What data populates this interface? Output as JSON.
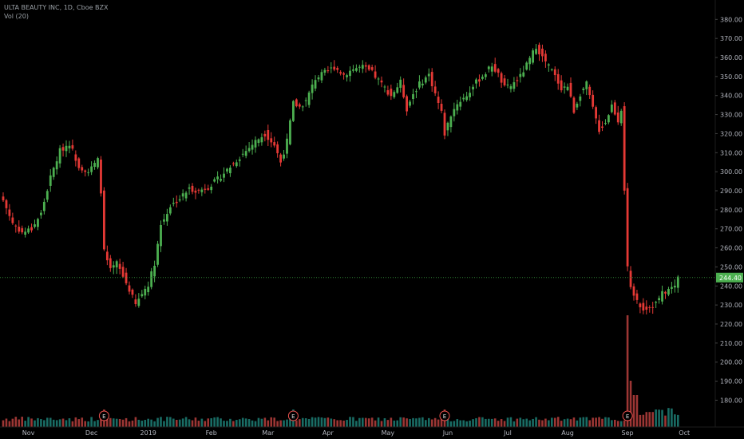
{
  "legend": {
    "symbol_line": "ULTA BEAUTY INC, 1D, Cboe BZX",
    "volume_line": "Vol (20)"
  },
  "colors": {
    "up": "#26a69a",
    "up_body": "#4caf50",
    "down": "#ef5350",
    "down_body": "#e53935",
    "background": "#000000",
    "axis_text": "#b2b5be",
    "price_line": "#2e7d32",
    "price_label_bg": "#4caf50"
  },
  "chart_data": {
    "type": "candlestick",
    "price_axis": {
      "ylim": [
        168,
        386
      ],
      "ticks": [
        "180.00",
        "190.00",
        "200.00",
        "210.00",
        "220.00",
        "230.00",
        "240.00",
        "250.00",
        "260.00",
        "270.00",
        "280.00",
        "290.00",
        "300.00",
        "310.00",
        "320.00",
        "330.00",
        "340.00",
        "350.00",
        "360.00",
        "370.00",
        "380.00"
      ]
    },
    "time_axis": {
      "labels": [
        "Nov",
        "Dec",
        "2019",
        "Feb",
        "Mar",
        "Apr",
        "May",
        "Jun",
        "Jul",
        "Aug",
        "Sep",
        "Oct"
      ],
      "label_bar_index": [
        8,
        28,
        46,
        66,
        84,
        103,
        122,
        141,
        160,
        179,
        198,
        216
      ]
    },
    "last_price": 244.4,
    "last_price_label": "244.40",
    "earnings_markers": {
      "label": "E",
      "bar_index": [
        32,
        92,
        140,
        198
      ]
    },
    "price_anchors": [
      [
        0,
        285
      ],
      [
        3,
        273
      ],
      [
        6,
        268
      ],
      [
        9,
        270
      ],
      [
        12,
        278
      ],
      [
        15,
        297
      ],
      [
        18,
        311
      ],
      [
        21,
        315
      ],
      [
        24,
        303
      ],
      [
        27,
        300
      ],
      [
        30,
        306
      ],
      [
        31,
        290
      ],
      [
        32,
        258
      ],
      [
        34,
        248
      ],
      [
        36,
        252
      ],
      [
        38,
        245
      ],
      [
        40,
        238
      ],
      [
        42,
        230
      ],
      [
        44,
        236
      ],
      [
        46,
        241
      ],
      [
        48,
        252
      ],
      [
        50,
        272
      ],
      [
        53,
        282
      ],
      [
        56,
        286
      ],
      [
        59,
        291
      ],
      [
        62,
        290
      ],
      [
        65,
        292
      ],
      [
        68,
        296
      ],
      [
        71,
        301
      ],
      [
        74,
        306
      ],
      [
        77,
        311
      ],
      [
        80,
        316
      ],
      [
        83,
        320
      ],
      [
        86,
        314
      ],
      [
        88,
        305
      ],
      [
        90,
        316
      ],
      [
        92,
        336
      ],
      [
        94,
        334
      ],
      [
        96,
        337
      ],
      [
        99,
        349
      ],
      [
        102,
        352
      ],
      [
        105,
        355
      ],
      [
        108,
        351
      ],
      [
        111,
        354
      ],
      [
        114,
        355
      ],
      [
        117,
        352
      ],
      [
        120,
        346
      ],
      [
        123,
        340
      ],
      [
        126,
        347
      ],
      [
        128,
        333
      ],
      [
        130,
        341
      ],
      [
        132,
        346
      ],
      [
        135,
        351
      ],
      [
        137,
        341
      ],
      [
        139,
        331
      ],
      [
        140,
        320
      ],
      [
        142,
        330
      ],
      [
        144,
        336
      ],
      [
        147,
        340
      ],
      [
        150,
        347
      ],
      [
        153,
        352
      ],
      [
        155,
        356
      ],
      [
        157,
        351
      ],
      [
        159,
        344
      ],
      [
        161,
        345
      ],
      [
        164,
        350
      ],
      [
        167,
        359
      ],
      [
        169,
        366
      ],
      [
        171,
        360
      ],
      [
        174,
        353
      ],
      [
        177,
        344
      ],
      [
        179,
        345
      ],
      [
        181,
        332
      ],
      [
        183,
        341
      ],
      [
        185,
        346
      ],
      [
        187,
        333
      ],
      [
        189,
        322
      ],
      [
        191,
        326
      ],
      [
        193,
        335
      ],
      [
        195,
        327
      ],
      [
        196,
        333
      ],
      [
        198,
        249
      ],
      [
        199,
        238
      ],
      [
        201,
        232
      ],
      [
        203,
        228
      ],
      [
        205,
        229
      ],
      [
        207,
        231
      ],
      [
        209,
        236
      ],
      [
        211,
        238
      ],
      [
        213,
        240
      ],
      [
        214,
        244.4
      ]
    ],
    "volume_profile": "relative volume bars; spikes at earnings bars 32, 92, 140 and a large spike at bar 198"
  }
}
